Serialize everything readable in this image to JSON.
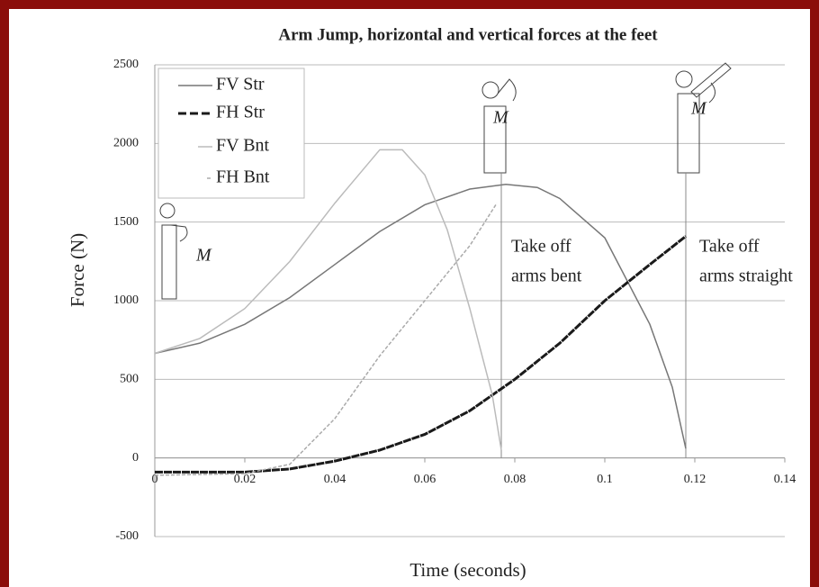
{
  "chart_data": {
    "type": "line",
    "title": "Arm Jump, horizontal and vertical forces at the feet",
    "x_label": "Time (seconds)",
    "y_label": "Force (N)",
    "xlim": [
      0,
      0.14
    ],
    "xticks": [
      0,
      0.02,
      0.04,
      0.06,
      0.08,
      0.1,
      0.12,
      0.14
    ],
    "ylim": [
      -500,
      2500
    ],
    "yticks": [
      -500,
      0,
      500,
      1000,
      1500,
      2000,
      2500
    ],
    "grid": true,
    "legend": "top-left",
    "series": [
      {
        "name": "FV Str",
        "color": "#777777",
        "dashed": false,
        "x": [
          0,
          0.01,
          0.02,
          0.03,
          0.04,
          0.05,
          0.06,
          0.07,
          0.078,
          0.085,
          0.09,
          0.1,
          0.11,
          0.115,
          0.118
        ],
        "values": [
          665,
          730,
          850,
          1020,
          1230,
          1440,
          1610,
          1710,
          1740,
          1720,
          1650,
          1400,
          850,
          450,
          60
        ]
      },
      {
        "name": "FH Str",
        "color": "#1a1a1a",
        "dashed": true,
        "x": [
          0,
          0.02,
          0.03,
          0.04,
          0.05,
          0.06,
          0.07,
          0.08,
          0.09,
          0.1,
          0.11,
          0.118
        ],
        "values": [
          -90,
          -90,
          -70,
          -20,
          50,
          150,
          300,
          500,
          730,
          1000,
          1230,
          1410
        ]
      },
      {
        "name": "FV Bnt",
        "color": "#bbbbbb",
        "dashed": false,
        "x": [
          0,
          0.01,
          0.02,
          0.03,
          0.04,
          0.05,
          0.055,
          0.06,
          0.065,
          0.07,
          0.075,
          0.077
        ],
        "values": [
          665,
          760,
          950,
          1250,
          1620,
          1960,
          1960,
          1800,
          1450,
          950,
          400,
          50
        ]
      },
      {
        "name": "FH Bnt",
        "color": "#aaaaaa",
        "dashed": true,
        "x": [
          0,
          0.02,
          0.03,
          0.04,
          0.05,
          0.06,
          0.07,
          0.076
        ],
        "values": [
          -110,
          -100,
          -40,
          250,
          650,
          1000,
          1350,
          1620
        ]
      }
    ],
    "takeoff_times": [
      0.077,
      0.118
    ],
    "annotations": [
      {
        "lines": [
          "Take off",
          "arms bent"
        ]
      },
      {
        "lines": [
          "Take off",
          "arms straight"
        ]
      }
    ],
    "moment_label": "M"
  }
}
